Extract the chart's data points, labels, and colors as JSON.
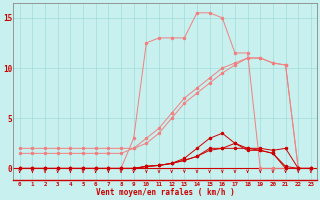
{
  "x": [
    0,
    1,
    2,
    3,
    4,
    5,
    6,
    7,
    8,
    9,
    10,
    11,
    12,
    13,
    14,
    15,
    16,
    17,
    18,
    19,
    20,
    21,
    22,
    23
  ],
  "line_light1_y": [
    2,
    2,
    2,
    2,
    2,
    2,
    2,
    2,
    2,
    2,
    2.5,
    3.5,
    5,
    6.5,
    7.5,
    8.5,
    9.5,
    10.3,
    11,
    11,
    10.5,
    10.3,
    0,
    0
  ],
  "line_light2_y": [
    1.5,
    1.5,
    1.5,
    1.5,
    1.5,
    1.5,
    1.5,
    1.5,
    1.5,
    2,
    3,
    4,
    5.5,
    7,
    8,
    9,
    10,
    10.5,
    11,
    11,
    10.5,
    10.3,
    0,
    0
  ],
  "line_light3_y": [
    0,
    0,
    0,
    0,
    0,
    0,
    0,
    0,
    0,
    3,
    12.5,
    13,
    13,
    13,
    15.5,
    15.5,
    15,
    11.5,
    11.5,
    0,
    0,
    0,
    0,
    0
  ],
  "line_dark1_y": [
    0,
    0,
    0,
    0,
    0,
    0,
    0,
    0,
    0,
    0,
    0.2,
    0.3,
    0.5,
    0.8,
    1.2,
    2,
    2,
    2,
    2,
    1.8,
    1.5,
    0.2,
    0,
    0
  ],
  "line_dark2_y": [
    0,
    0,
    0,
    0,
    0,
    0,
    0,
    0,
    0,
    0,
    0.2,
    0.3,
    0.5,
    1,
    2,
    3,
    3.5,
    2.5,
    2,
    2,
    1.8,
    2,
    0,
    0
  ],
  "line_dark3_y": [
    0,
    0,
    0,
    0,
    0,
    0,
    0,
    0,
    0,
    0,
    0.2,
    0.3,
    0.5,
    0.8,
    1.2,
    1.8,
    2,
    2.5,
    1.8,
    1.8,
    1.5,
    0,
    0,
    0
  ],
  "xlabel": "Vent moyen/en rafales ( km/h )",
  "yticks": [
    0,
    5,
    10,
    15
  ],
  "xticks": [
    0,
    1,
    2,
    3,
    4,
    5,
    6,
    7,
    8,
    9,
    10,
    11,
    12,
    13,
    14,
    15,
    16,
    17,
    18,
    19,
    20,
    21,
    22,
    23
  ],
  "bg_color": "#c8f0ee",
  "grid_color": "#a0dcda",
  "dark_red": "#cc0000",
  "light_red": "#f08080",
  "axis_color": "#888888",
  "xlabel_color": "#cc0000",
  "tick_color": "#cc0000",
  "xlim": [
    -0.5,
    23.5
  ],
  "ylim": [
    -1.2,
    16.5
  ]
}
